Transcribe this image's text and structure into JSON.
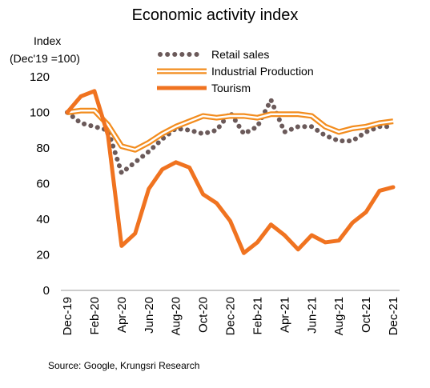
{
  "chart_data": {
    "type": "line",
    "title": "Economic activity index",
    "ylabel_line1": "Index",
    "ylabel_line2": "(Dec'19 =100)",
    "xlabel": "",
    "ylim": [
      0,
      120
    ],
    "yticks": [
      0,
      20,
      40,
      60,
      80,
      100,
      120
    ],
    "x": [
      "Dec-19",
      "Jan-20",
      "Feb-20",
      "Mar-20",
      "Apr-20",
      "May-20",
      "Jun-20",
      "Jul-20",
      "Aug-20",
      "Sep-20",
      "Oct-20",
      "Nov-20",
      "Dec-20",
      "Jan-21",
      "Feb-21",
      "Mar-21",
      "Apr-21",
      "May-21",
      "Jun-21",
      "Jul-21",
      "Aug-21",
      "Sep-21",
      "Oct-21",
      "Nov-21",
      "Dec-21"
    ],
    "xtick_labels": [
      "Dec-19",
      "Feb-20",
      "Apr-20",
      "Jun-20",
      "Aug-20",
      "Oct-20",
      "Dec-20",
      "Feb-21",
      "Apr-21",
      "Jun-21",
      "Aug-21",
      "Oct-21",
      "Dec-21"
    ],
    "grid": false,
    "legend_position": "top-center",
    "series": [
      {
        "name": "Retail sales",
        "style": "dotted",
        "color": "#6b5a5a",
        "values": [
          100,
          94,
          92,
          90,
          66,
          72,
          78,
          85,
          91,
          90,
          88,
          90,
          100,
          88,
          92,
          107,
          89,
          92,
          92,
          87,
          84,
          84,
          89,
          92,
          92
        ]
      },
      {
        "name": "Industrial Production",
        "style": "double",
        "color": "#f28c1e",
        "values": [
          100,
          101,
          101,
          93,
          81,
          79,
          83,
          88,
          92,
          95,
          98,
          97,
          98,
          98,
          97,
          99,
          99,
          99,
          98,
          92,
          89,
          91,
          92,
          94,
          95
        ]
      },
      {
        "name": "Tourism",
        "style": "solid",
        "color": "#f07320",
        "values": [
          100,
          109,
          112,
          87,
          25,
          32,
          57,
          68,
          72,
          69,
          54,
          49,
          39,
          21,
          27,
          37,
          31,
          23,
          31,
          27,
          28,
          38,
          44,
          56,
          58
        ]
      }
    ]
  },
  "source": "Source: Google, Krungsri Research"
}
